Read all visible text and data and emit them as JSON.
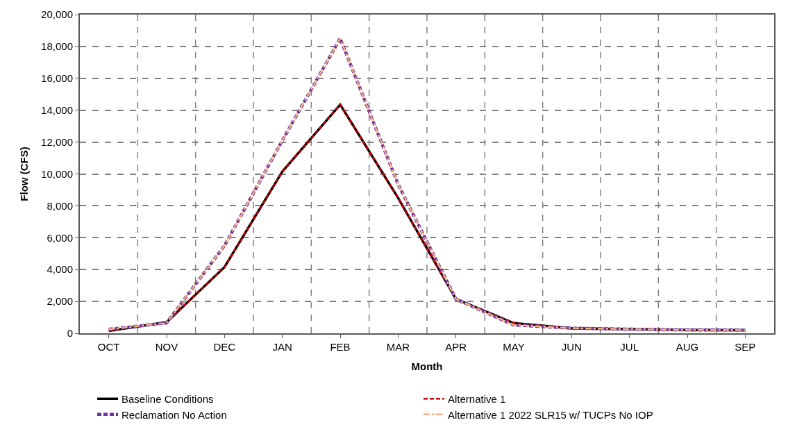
{
  "chart_data": {
    "type": "line",
    "xlabel": "Month",
    "ylabel": "Flow (CFS)",
    "categories": [
      "OCT",
      "NOV",
      "DEC",
      "JAN",
      "FEB",
      "MAR",
      "APR",
      "MAY",
      "JUN",
      "JUL",
      "AUG",
      "SEP"
    ],
    "series": [
      {
        "name": "Baseline Conditions",
        "color": "#000000",
        "line_style": "solid",
        "values": [
          150,
          700,
          4150,
          10150,
          14350,
          8500,
          2150,
          640,
          320,
          260,
          210,
          200
        ]
      },
      {
        "name": "Alternative 1",
        "color": "#c00000",
        "line_style": "dashed",
        "values": [
          150,
          700,
          4150,
          10150,
          14350,
          8500,
          2150,
          640,
          320,
          260,
          210,
          200
        ]
      },
      {
        "name": "Reclamation No Action",
        "color": "#7030a0",
        "line_style": "dashed",
        "values": [
          250,
          650,
          5500,
          12100,
          18500,
          9350,
          2150,
          520,
          320,
          260,
          210,
          200
        ]
      },
      {
        "name": "Alternative 1 2022 SLR15 w/ TUCPs No IOP",
        "color": "#f4b183",
        "line_style": "dashdot",
        "values": [
          250,
          650,
          5500,
          12100,
          18500,
          9350,
          2150,
          520,
          320,
          260,
          210,
          200
        ]
      }
    ],
    "ylim": [
      0,
      20000
    ],
    "yticks": [
      {
        "value": 0,
        "label": "0"
      },
      {
        "value": 2000,
        "label": "2,000"
      },
      {
        "value": 4000,
        "label": "4,000"
      },
      {
        "value": 6000,
        "label": "6,000"
      },
      {
        "value": 8000,
        "label": "8,000"
      },
      {
        "value": 10000,
        "label": "10,000"
      },
      {
        "value": 12000,
        "label": "12,000"
      },
      {
        "value": 14000,
        "label": "14,000"
      },
      {
        "value": 16000,
        "label": "16,000"
      },
      {
        "value": 18000,
        "label": "18,000"
      },
      {
        "value": 20000,
        "label": "20,000"
      }
    ],
    "grid": true,
    "legend": "bottom",
    "marker": "none"
  }
}
